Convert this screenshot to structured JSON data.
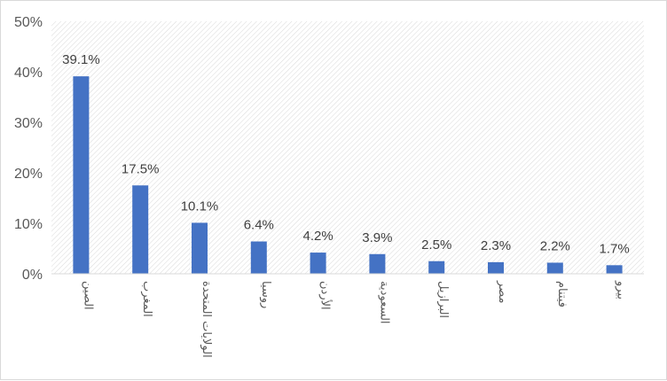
{
  "chart_data": {
    "type": "bar",
    "categories": [
      "الصين",
      "المغرب",
      "الولايات المتحدة",
      "روسيا",
      "الأردن",
      "السعودية",
      "البرازيل",
      "مصر",
      "فيتنام",
      "بيرو"
    ],
    "values": [
      39.1,
      17.5,
      10.1,
      6.4,
      4.2,
      3.9,
      2.5,
      2.3,
      2.2,
      1.7
    ],
    "data_labels": [
      "39.1%",
      "17.5%",
      "10.1%",
      "6.4%",
      "4.2%",
      "3.9%",
      "2.5%",
      "2.3%",
      "2.2%",
      "1.7%"
    ],
    "y_ticks": [
      "0%",
      "10%",
      "20%",
      "30%",
      "40%",
      "50%"
    ],
    "ylim": [
      0,
      50
    ],
    "title": "",
    "xlabel": "",
    "ylabel": "",
    "grid": false,
    "legend": "none",
    "bar_color": "#4472C4",
    "plot_pattern": "diagonal-hatch"
  }
}
